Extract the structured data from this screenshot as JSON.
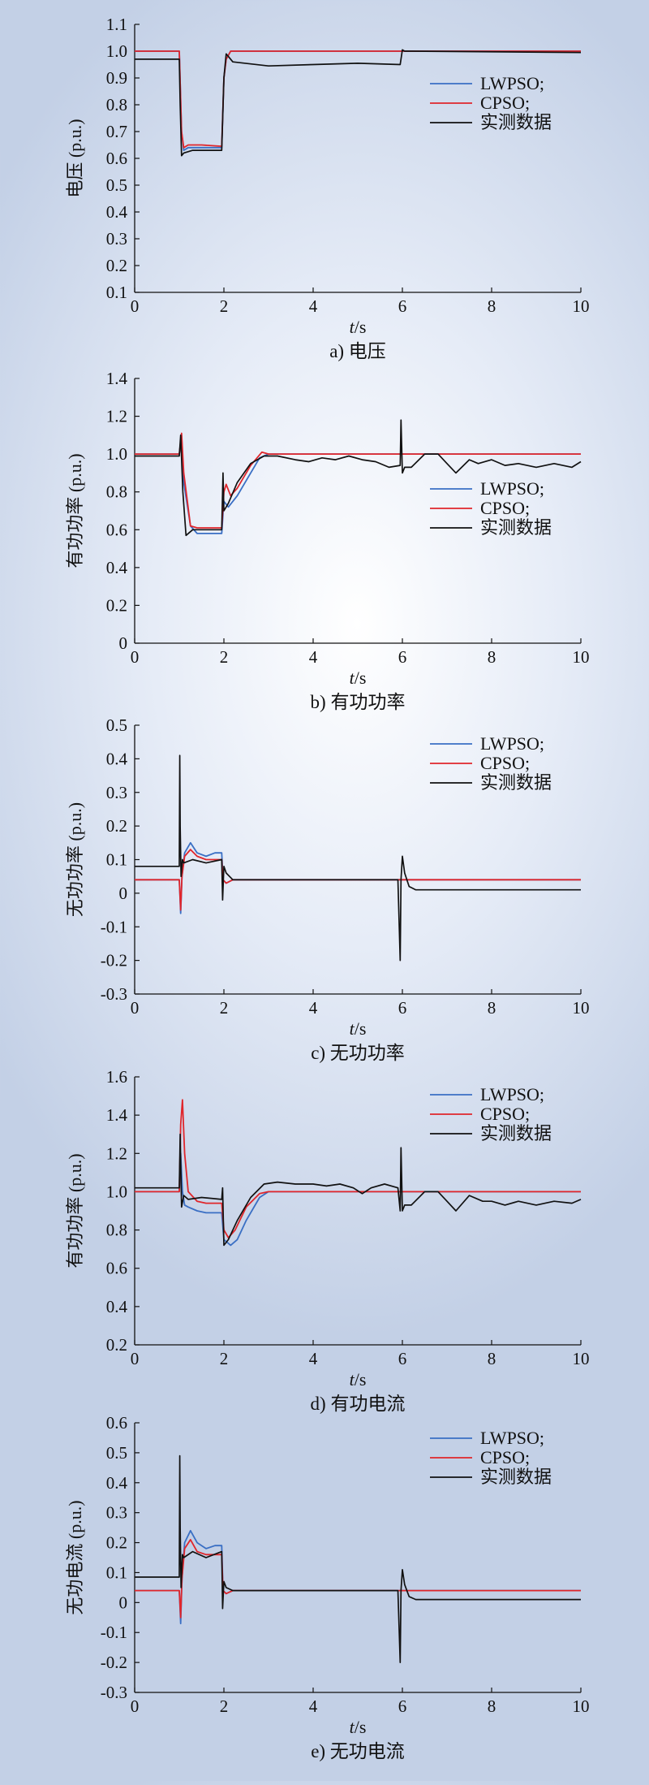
{
  "colors": {
    "lwpso": "#3a6fc4",
    "cpso": "#e0262b",
    "measured": "#111111"
  },
  "chart_data": [
    {
      "type": "line",
      "caption": "a) 电压",
      "xlabel_italic": "t",
      "xlabel_unit": "/s",
      "ylabel": "电压 (p.u.)",
      "xlim": [
        0,
        10
      ],
      "ylim": [
        0.1,
        1.1
      ],
      "xticks": [
        "0",
        "2",
        "4",
        "6",
        "8",
        "10"
      ],
      "yticks": [
        "0.1",
        "0.2",
        "0.3",
        "0.4",
        "0.5",
        "0.6",
        "0.7",
        "0.8",
        "0.9",
        "1.0",
        "1.1"
      ],
      "legend": [
        "LWPSO;",
        "CPSO;",
        "实测数据"
      ],
      "legend_position": "upper-right",
      "series": [
        {
          "name": "LWPSO;",
          "color": "#3a6fc4",
          "x": [
            0,
            1.0,
            1.05,
            1.1,
            1.2,
            1.5,
            1.95,
            2.0,
            2.05,
            2.15,
            2.3,
            10
          ],
          "y": [
            1.0,
            1.0,
            0.7,
            0.63,
            0.64,
            0.64,
            0.64,
            0.9,
            0.97,
            1.0,
            1.0,
            1.0
          ]
        },
        {
          "name": "CPSO;",
          "color": "#e0262b",
          "x": [
            0,
            1.0,
            1.05,
            1.1,
            1.2,
            1.5,
            1.95,
            2.0,
            2.05,
            2.15,
            2.3,
            10
          ],
          "y": [
            1.0,
            1.0,
            0.7,
            0.64,
            0.65,
            0.65,
            0.645,
            0.9,
            0.97,
            1.0,
            1.0,
            1.0
          ]
        },
        {
          "name": "实测数据",
          "color": "#111111",
          "x": [
            0,
            1.0,
            1.02,
            1.05,
            1.1,
            1.3,
            1.95,
            2.0,
            2.05,
            2.2,
            3.0,
            4.0,
            5.0,
            5.95,
            6.0,
            6.05,
            6.2,
            10
          ],
          "y": [
            0.97,
            0.97,
            0.8,
            0.61,
            0.62,
            0.63,
            0.63,
            0.9,
            0.99,
            0.96,
            0.945,
            0.95,
            0.955,
            0.95,
            1.005,
            1.0,
            1.0,
            0.995
          ]
        }
      ]
    },
    {
      "type": "line",
      "caption": "b) 有功功率",
      "xlabel_italic": "t",
      "xlabel_unit": "/s",
      "ylabel": "有功功率 (p.u.)",
      "xlim": [
        0,
        10
      ],
      "ylim": [
        0,
        1.4
      ],
      "xticks": [
        "0",
        "2",
        "4",
        "6",
        "8",
        "10"
      ],
      "yticks": [
        "0",
        "0.2",
        "0.4",
        "0.6",
        "0.8",
        "1.0",
        "1.2",
        "1.4"
      ],
      "legend": [
        "LWPSO;",
        "CPSO;",
        "实测数据"
      ],
      "legend_position": "right",
      "series": [
        {
          "name": "LWPSO;",
          "color": "#3a6fc4",
          "x": [
            0,
            1.0,
            1.05,
            1.1,
            1.25,
            1.4,
            1.95,
            2.0,
            2.1,
            2.3,
            2.6,
            2.8,
            3.0,
            10
          ],
          "y": [
            1.0,
            1.0,
            1.1,
            0.85,
            0.62,
            0.58,
            0.58,
            0.75,
            0.72,
            0.78,
            0.9,
            0.98,
            1.0,
            1.0
          ]
        },
        {
          "name": "CPSO;",
          "color": "#e0262b",
          "x": [
            0,
            1.0,
            1.05,
            1.1,
            1.25,
            1.4,
            1.95,
            2.0,
            2.05,
            2.15,
            2.3,
            2.6,
            2.85,
            3.0,
            10
          ],
          "y": [
            1.0,
            1.0,
            1.11,
            0.9,
            0.62,
            0.61,
            0.61,
            0.8,
            0.84,
            0.78,
            0.82,
            0.94,
            1.01,
            1.0,
            1.0
          ]
        },
        {
          "name": "实测数据",
          "color": "#111111",
          "x": [
            0,
            1.0,
            1.03,
            1.08,
            1.15,
            1.3,
            1.95,
            1.98,
            2.0,
            2.1,
            2.3,
            2.6,
            2.9,
            3.2,
            3.6,
            3.9,
            4.2,
            4.5,
            4.8,
            5.1,
            5.4,
            5.7,
            5.95,
            5.97,
            6.0,
            6.05,
            6.2,
            6.5,
            6.8,
            7.0,
            7.2,
            7.5,
            7.7,
            8.0,
            8.3,
            8.6,
            9.0,
            9.4,
            9.8,
            10
          ],
          "y": [
            0.99,
            0.99,
            1.1,
            0.8,
            0.57,
            0.6,
            0.6,
            0.9,
            0.7,
            0.74,
            0.85,
            0.95,
            0.99,
            0.99,
            0.97,
            0.96,
            0.98,
            0.97,
            0.99,
            0.97,
            0.96,
            0.93,
            0.94,
            1.18,
            0.9,
            0.93,
            0.93,
            1.0,
            1.0,
            0.95,
            0.9,
            0.97,
            0.95,
            0.97,
            0.94,
            0.95,
            0.93,
            0.95,
            0.93,
            0.96
          ]
        }
      ]
    },
    {
      "type": "line",
      "caption": "c) 无功功率",
      "xlabel_italic": "t",
      "xlabel_unit": "/s",
      "ylabel": "无功功率 (p.u.)",
      "xlim": [
        0,
        10
      ],
      "ylim": [
        -0.3,
        0.5
      ],
      "xticks": [
        "0",
        "2",
        "4",
        "6",
        "8",
        "10"
      ],
      "yticks": [
        "-0.3",
        "-0.2",
        "-0.1",
        "0",
        "0.1",
        "0.2",
        "0.3",
        "0.4",
        "0.5"
      ],
      "legend": [
        "LWPSO;",
        "CPSO;",
        "实测数据"
      ],
      "legend_position": "upper-right",
      "series": [
        {
          "name": "LWPSO;",
          "color": "#3a6fc4",
          "x": [
            0,
            1.0,
            1.03,
            1.06,
            1.12,
            1.25,
            1.4,
            1.6,
            1.8,
            1.95,
            1.98,
            2.05,
            2.2,
            10
          ],
          "y": [
            0.04,
            0.04,
            -0.06,
            0.05,
            0.12,
            0.15,
            0.12,
            0.11,
            0.12,
            0.12,
            0.04,
            0.03,
            0.04,
            0.04
          ]
        },
        {
          "name": "CPSO;",
          "color": "#e0262b",
          "x": [
            0,
            1.0,
            1.03,
            1.06,
            1.12,
            1.25,
            1.4,
            1.6,
            1.8,
            1.95,
            1.98,
            2.05,
            2.2,
            10
          ],
          "y": [
            0.04,
            0.04,
            -0.05,
            0.05,
            0.11,
            0.13,
            0.11,
            0.1,
            0.1,
            0.1,
            0.04,
            0.03,
            0.04,
            0.04
          ]
        },
        {
          "name": "实测数据",
          "color": "#111111",
          "x": [
            0,
            1.0,
            1.01,
            1.02,
            1.04,
            1.07,
            1.1,
            1.3,
            1.6,
            1.95,
            1.97,
            2.0,
            2.05,
            2.2,
            3.0,
            4.0,
            5.0,
            5.9,
            5.95,
            5.97,
            6.0,
            6.05,
            6.15,
            6.3,
            6.6,
            7.0,
            8.0,
            9.0,
            10
          ],
          "y": [
            0.08,
            0.08,
            0.41,
            0.2,
            0.05,
            0.1,
            0.09,
            0.1,
            0.09,
            0.1,
            -0.02,
            0.08,
            0.06,
            0.04,
            0.04,
            0.04,
            0.04,
            0.04,
            -0.2,
            0.04,
            0.11,
            0.06,
            0.02,
            0.01,
            0.01,
            0.01,
            0.01,
            0.01,
            0.01
          ]
        }
      ]
    },
    {
      "type": "line",
      "caption": "d) 有功电流",
      "xlabel_italic": "t",
      "xlabel_unit": "/s",
      "ylabel": "有功功率 (p.u.)",
      "xlim": [
        0,
        10
      ],
      "ylim": [
        0.2,
        1.6
      ],
      "xticks": [
        "0",
        "2",
        "4",
        "6",
        "8",
        "10"
      ],
      "yticks": [
        "0.2",
        "0.4",
        "0.6",
        "0.8",
        "1.0",
        "1.2",
        "1.4",
        "1.6"
      ],
      "legend": [
        "LWPSO;",
        "CPSO;",
        "实测数据"
      ],
      "legend_position": "upper-right",
      "series": [
        {
          "name": "LWPSO;",
          "color": "#3a6fc4",
          "x": [
            0,
            1.0,
            1.03,
            1.07,
            1.12,
            1.2,
            1.4,
            1.6,
            1.95,
            2.0,
            2.15,
            2.3,
            2.5,
            2.8,
            3.0,
            10
          ],
          "y": [
            1.0,
            1.0,
            1.2,
            1.0,
            0.93,
            0.92,
            0.9,
            0.89,
            0.89,
            0.75,
            0.72,
            0.75,
            0.85,
            0.97,
            1.0,
            1.0
          ]
        },
        {
          "name": "CPSO;",
          "color": "#e0262b",
          "x": [
            0,
            1.0,
            1.03,
            1.07,
            1.12,
            1.2,
            1.4,
            1.6,
            1.95,
            2.0,
            2.1,
            2.25,
            2.5,
            2.8,
            3.0,
            10
          ],
          "y": [
            1.0,
            1.0,
            1.35,
            1.48,
            1.2,
            1.0,
            0.95,
            0.94,
            0.94,
            0.8,
            0.76,
            0.8,
            0.92,
            0.99,
            1.0,
            1.0
          ]
        },
        {
          "name": "实测数据",
          "color": "#111111",
          "x": [
            0,
            1.0,
            1.02,
            1.05,
            1.1,
            1.2,
            1.5,
            1.95,
            1.97,
            2.0,
            2.1,
            2.3,
            2.6,
            2.9,
            3.2,
            3.6,
            4.0,
            4.3,
            4.6,
            4.9,
            5.1,
            5.3,
            5.6,
            5.9,
            5.95,
            5.97,
            6.0,
            6.05,
            6.2,
            6.5,
            6.8,
            7.0,
            7.2,
            7.5,
            7.8,
            8.0,
            8.3,
            8.6,
            9.0,
            9.4,
            9.8,
            10
          ],
          "y": [
            1.02,
            1.02,
            1.3,
            0.92,
            0.98,
            0.96,
            0.97,
            0.96,
            1.02,
            0.72,
            0.75,
            0.85,
            0.97,
            1.04,
            1.05,
            1.04,
            1.04,
            1.03,
            1.04,
            1.02,
            0.99,
            1.02,
            1.04,
            1.02,
            0.9,
            1.23,
            0.9,
            0.93,
            0.93,
            1.0,
            1.0,
            0.95,
            0.9,
            0.98,
            0.95,
            0.95,
            0.93,
            0.95,
            0.93,
            0.95,
            0.94,
            0.96
          ]
        }
      ]
    },
    {
      "type": "line",
      "caption": "e) 无功电流",
      "xlabel_italic": "t",
      "xlabel_unit": "/s",
      "ylabel": "无功电流 (p.u.)",
      "xlim": [
        0,
        10
      ],
      "ylim": [
        -0.3,
        0.6
      ],
      "xticks": [
        "0",
        "2",
        "4",
        "6",
        "8",
        "10"
      ],
      "yticks": [
        "-0.3",
        "-0.2",
        "-0.1",
        "0",
        "0.1",
        "0.2",
        "0.3",
        "0.4",
        "0.5",
        "0.6"
      ],
      "legend": [
        "LWPSO;",
        "CPSO;",
        "实测数据"
      ],
      "legend_position": "upper-right",
      "series": [
        {
          "name": "LWPSO;",
          "color": "#3a6fc4",
          "x": [
            0,
            1.0,
            1.03,
            1.06,
            1.12,
            1.25,
            1.4,
            1.6,
            1.8,
            1.95,
            1.98,
            2.05,
            2.2,
            10
          ],
          "y": [
            0.04,
            0.04,
            -0.07,
            0.08,
            0.2,
            0.24,
            0.2,
            0.18,
            0.19,
            0.19,
            0.04,
            0.03,
            0.04,
            0.04
          ]
        },
        {
          "name": "CPSO;",
          "color": "#e0262b",
          "x": [
            0,
            1.0,
            1.03,
            1.06,
            1.12,
            1.25,
            1.4,
            1.6,
            1.8,
            1.95,
            1.98,
            2.05,
            2.2,
            10
          ],
          "y": [
            0.04,
            0.04,
            -0.05,
            0.08,
            0.18,
            0.21,
            0.17,
            0.16,
            0.16,
            0.16,
            0.04,
            0.03,
            0.04,
            0.04
          ]
        },
        {
          "name": "实测数据",
          "color": "#111111",
          "x": [
            0,
            1.0,
            1.01,
            1.02,
            1.04,
            1.07,
            1.1,
            1.3,
            1.6,
            1.95,
            1.97,
            2.0,
            2.05,
            2.2,
            3.0,
            4.0,
            5.0,
            5.9,
            5.95,
            5.97,
            6.0,
            6.05,
            6.15,
            6.3,
            6.6,
            7.0,
            8.0,
            9.0,
            10
          ],
          "y": [
            0.085,
            0.085,
            0.49,
            0.25,
            0.05,
            0.16,
            0.15,
            0.17,
            0.15,
            0.17,
            -0.02,
            0.07,
            0.05,
            0.04,
            0.04,
            0.04,
            0.04,
            0.04,
            -0.2,
            0.04,
            0.11,
            0.06,
            0.02,
            0.01,
            0.01,
            0.01,
            0.01,
            0.01,
            0.01
          ]
        }
      ]
    }
  ]
}
